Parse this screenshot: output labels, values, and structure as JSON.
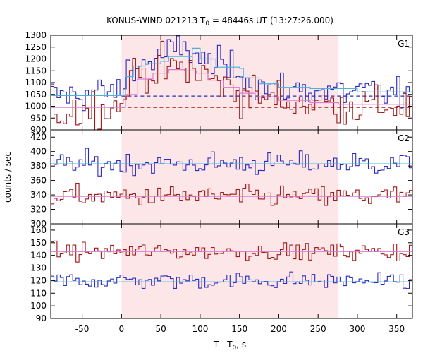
{
  "chart_data": {
    "type": "line",
    "title_main": "KONUS-WIND 021213 T",
    "title_sub": "0",
    "title_rest": " = 48446s UT (13:27:26.000)",
    "xlabel_main": "T - T",
    "xlabel_sub": "0",
    "xlabel_rest": ", s",
    "ylabel": "counts / sec",
    "xlim": [
      -90,
      370
    ],
    "xticks": [
      -50,
      0,
      50,
      100,
      150,
      200,
      250,
      300,
      350
    ],
    "shaded_interval": [
      0,
      276
    ],
    "colors": {
      "blue": "#2b2bbf",
      "red": "#a01818",
      "cyan": "#46b4dc",
      "pink": "#e07ad0",
      "shade": "#fde6e8"
    },
    "panels": [
      {
        "label": "G1",
        "ylim": [
          900,
          1300
        ],
        "yticks": [
          900,
          950,
          1000,
          1050,
          1100,
          1150,
          1200,
          1250,
          1300
        ],
        "background": [
          {
            "series": "blue",
            "level": 1043
          },
          {
            "series": "red",
            "level": 995
          }
        ],
        "blue_points": [
          [
            -90,
            1047
          ],
          [
            -60,
            1045
          ],
          [
            -30,
            1058
          ],
          [
            0,
            1060
          ],
          [
            5,
            1120
          ],
          [
            10,
            1190
          ],
          [
            20,
            1170
          ],
          [
            35,
            1185
          ],
          [
            50,
            1205
          ],
          [
            65,
            1230
          ],
          [
            80,
            1245
          ],
          [
            95,
            1230
          ],
          [
            100,
            1190
          ],
          [
            120,
            1175
          ],
          [
            140,
            1160
          ],
          [
            155,
            1150
          ],
          [
            158,
            1110
          ],
          [
            175,
            1090
          ],
          [
            200,
            1078
          ],
          [
            240,
            1068
          ],
          [
            276,
            1060
          ],
          [
            300,
            1058
          ],
          [
            370,
            1052
          ]
        ],
        "red_points": [
          [
            -90,
            975
          ],
          [
            -60,
            985
          ],
          [
            -30,
            995
          ],
          [
            0,
            998
          ],
          [
            5,
            1060
          ],
          [
            10,
            1130
          ],
          [
            20,
            1140
          ],
          [
            40,
            1150
          ],
          [
            60,
            1160
          ],
          [
            80,
            1155
          ],
          [
            95,
            1150
          ],
          [
            110,
            1120
          ],
          [
            130,
            1090
          ],
          [
            150,
            1060
          ],
          [
            170,
            1040
          ],
          [
            200,
            1025
          ],
          [
            240,
            1015
          ],
          [
            276,
            1008
          ],
          [
            300,
            1003
          ],
          [
            370,
            1000
          ]
        ],
        "blue_fit": [
          [
            -90,
            1045
          ],
          [
            0,
            1045
          ],
          [
            5,
            1125
          ],
          [
            15,
            1170
          ],
          [
            30,
            1180
          ],
          [
            50,
            1190
          ],
          [
            60,
            1210
          ],
          [
            90,
            1245
          ],
          [
            100,
            1200
          ],
          [
            120,
            1165
          ],
          [
            150,
            1160
          ],
          [
            155,
            1120
          ],
          [
            175,
            1095
          ],
          [
            200,
            1080
          ],
          [
            240,
            1075
          ],
          [
            276,
            1075
          ],
          [
            300,
            1060
          ],
          [
            370,
            1048
          ]
        ],
        "red_fit": [
          [
            -90,
            995
          ],
          [
            0,
            995
          ],
          [
            5,
            1050
          ],
          [
            20,
            1115
          ],
          [
            40,
            1140
          ],
          [
            60,
            1155
          ],
          [
            80,
            1150
          ],
          [
            95,
            1140
          ],
          [
            110,
            1110
          ],
          [
            130,
            1080
          ],
          [
            150,
            1055
          ],
          [
            170,
            1040
          ],
          [
            200,
            1025
          ],
          [
            240,
            1015
          ],
          [
            276,
            1008
          ],
          [
            370,
            1000
          ]
        ]
      },
      {
        "label": "G2",
        "ylim": [
          300,
          430
        ],
        "yticks": [
          300,
          320,
          340,
          360,
          380,
          400,
          420
        ],
        "blue_points": [
          [
            -90,
            383
          ],
          [
            370,
            383
          ]
        ],
        "red_points": [
          [
            -90,
            338
          ],
          [
            370,
            338
          ]
        ],
        "blue_fit": [
          [
            -90,
            383
          ],
          [
            370,
            383
          ]
        ],
        "red_fit": [
          [
            -90,
            338
          ],
          [
            370,
            338
          ]
        ]
      },
      {
        "label": "G3",
        "ylim": [
          90,
          165
        ],
        "yticks": [
          90,
          100,
          110,
          120,
          130,
          140,
          150,
          160
        ],
        "blue_points": [
          [
            -90,
            120
          ],
          [
            370,
            120
          ]
        ],
        "red_points": [
          [
            -90,
            143
          ],
          [
            370,
            143
          ]
        ],
        "blue_fit": [
          [
            -90,
            119
          ],
          [
            370,
            119
          ]
        ],
        "red_fit": [
          [
            -90,
            143
          ],
          [
            370,
            143
          ]
        ]
      }
    ]
  }
}
